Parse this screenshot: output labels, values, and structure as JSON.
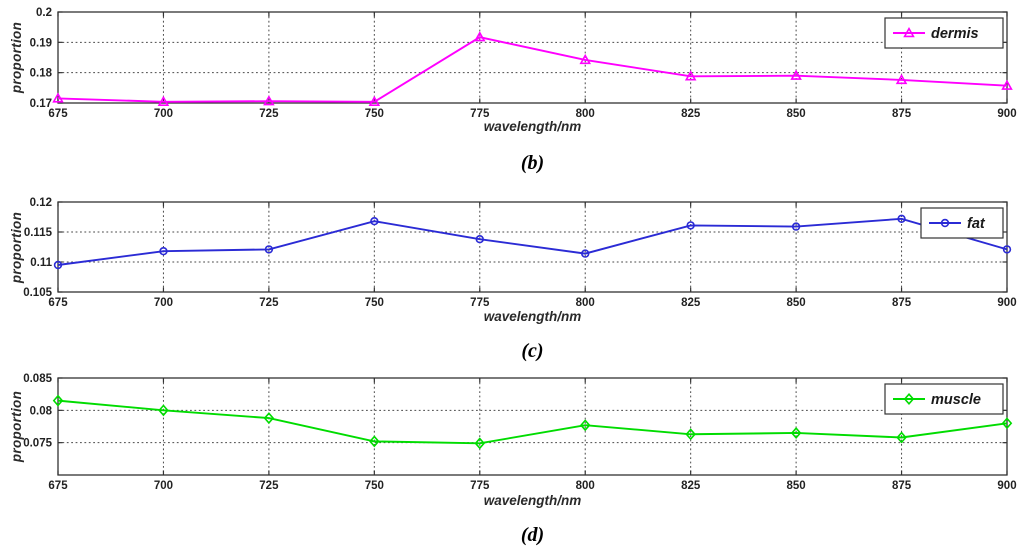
{
  "figure_background": "#ffffff",
  "style": {
    "axis_color": "#333333",
    "grid_color": "#4a4a4a",
    "tick_label_color": "#222222",
    "axis_label_color": "#2a2a2a",
    "legend_border_color": "#333333",
    "legend_background": "#ffffff",
    "legend_text_color": "#1a1a1a"
  },
  "chart_data": [
    {
      "type": "line",
      "caption": "(b)",
      "xlabel": "wavelength/nm",
      "ylabel": "proportion",
      "legend": "dermis",
      "legend_position": "top-right-inside",
      "series_color": "#FF00FF",
      "marker": "triangle",
      "grid": true,
      "x": [
        675,
        700,
        725,
        750,
        775,
        800,
        825,
        850,
        875,
        900
      ],
      "y": [
        0.1715,
        0.1704,
        0.1706,
        0.1704,
        0.1917,
        0.1842,
        0.1788,
        0.179,
        0.1776,
        0.1757
      ],
      "xlim": [
        675,
        900
      ],
      "ylim": [
        0.17,
        0.2
      ],
      "xticks": [
        675,
        700,
        725,
        750,
        775,
        800,
        825,
        850,
        875,
        900
      ],
      "xtick_labels": [
        "675",
        "700",
        "725",
        "750",
        "775",
        "800",
        "825",
        "850",
        "875",
        "900"
      ],
      "yticks": [
        0.17,
        0.18,
        0.19,
        0.2
      ],
      "ytick_labels": [
        "0.17",
        "0.18",
        "0.19",
        "0.2"
      ]
    },
    {
      "type": "line",
      "caption": "(c)",
      "xlabel": "wavelength/nm",
      "ylabel": "proportion",
      "legend": "fat",
      "legend_position": "top-right-inside",
      "series_color": "#2B2BD5",
      "marker": "circle",
      "grid": true,
      "x": [
        675,
        700,
        725,
        750,
        775,
        800,
        825,
        850,
        875,
        900
      ],
      "y": [
        0.1095,
        0.1118,
        0.1121,
        0.1168,
        0.1138,
        0.1114,
        0.1161,
        0.1159,
        0.1172,
        0.1121
      ],
      "xlim": [
        675,
        900
      ],
      "ylim": [
        0.105,
        0.12
      ],
      "xticks": [
        675,
        700,
        725,
        750,
        775,
        800,
        825,
        850,
        875,
        900
      ],
      "xtick_labels": [
        "675",
        "700",
        "725",
        "750",
        "775",
        "800",
        "825",
        "850",
        "875",
        "900"
      ],
      "yticks": [
        0.105,
        0.11,
        0.115,
        0.12
      ],
      "ytick_labels": [
        "0.105",
        "0.11",
        "0.115",
        "0.12"
      ]
    },
    {
      "type": "line",
      "caption": "(d)",
      "xlabel": "wavelength/nm",
      "ylabel": "proportion",
      "legend": "muscle",
      "legend_position": "top-right-inside",
      "series_color": "#00DC00",
      "marker": "diamond",
      "grid": true,
      "x": [
        675,
        700,
        725,
        750,
        775,
        800,
        825,
        850,
        875,
        900
      ],
      "y": [
        0.0815,
        0.08,
        0.0788,
        0.0752,
        0.0749,
        0.0777,
        0.0763,
        0.0765,
        0.0758,
        0.078
      ],
      "xlim": [
        675,
        900
      ],
      "ylim": [
        0.07,
        0.085
      ],
      "xticks": [
        675,
        700,
        725,
        750,
        775,
        800,
        825,
        850,
        875,
        900
      ],
      "xtick_labels": [
        "675",
        "700",
        "725",
        "750",
        "775",
        "800",
        "825",
        "850",
        "875",
        "900"
      ],
      "yticks": [
        0.075,
        0.08,
        0.085
      ],
      "ytick_labels": [
        "0.075",
        "0.08",
        "0.085"
      ]
    }
  ]
}
